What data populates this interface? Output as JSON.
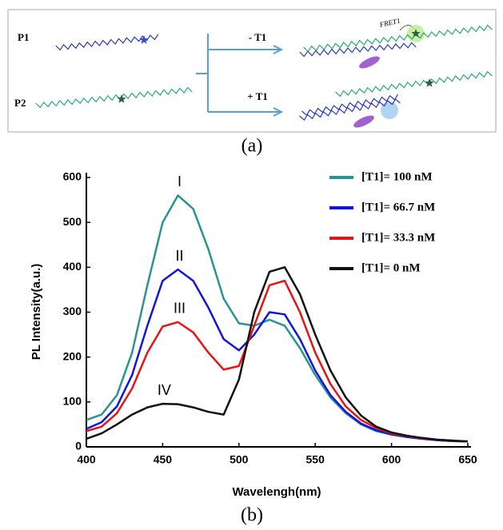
{
  "diagram": {
    "p1": "P1",
    "p2": "P2",
    "minus": "- T1",
    "plus": "+ T1",
    "fret": "FRET1"
  },
  "captions": [
    "(a)",
    "(b)"
  ],
  "chart_data": {
    "type": "line",
    "x_label": "Wavelengh(nm)",
    "y_label": "PL Intensity(a.u.)",
    "x": [
      400,
      410,
      420,
      430,
      440,
      450,
      460,
      470,
      480,
      490,
      500,
      510,
      520,
      530,
      540,
      550,
      560,
      570,
      580,
      590,
      600,
      610,
      620,
      630,
      640,
      650
    ],
    "series": [
      {
        "name": "[T1]= 100 nM",
        "label": "I",
        "color": "#2a9393",
        "values": [
          60,
          72,
          115,
          210,
          360,
          500,
          560,
          530,
          440,
          330,
          275,
          270,
          283,
          270,
          220,
          160,
          110,
          75,
          50,
          35,
          27,
          22,
          18,
          15,
          13,
          12
        ]
      },
      {
        "name": "[T1]= 66.7 nM",
        "label": "II",
        "color": "#1414e0",
        "values": [
          40,
          55,
          90,
          160,
          270,
          370,
          395,
          370,
          310,
          240,
          215,
          250,
          300,
          295,
          240,
          170,
          115,
          78,
          52,
          37,
          28,
          22,
          18,
          15,
          13,
          12
        ]
      },
      {
        "name": "[T1]= 33.3 nM",
        "label": "III",
        "color": "#e81414",
        "values": [
          35,
          45,
          75,
          130,
          210,
          268,
          278,
          255,
          210,
          172,
          180,
          270,
          360,
          370,
          300,
          210,
          140,
          90,
          60,
          42,
          30,
          24,
          19,
          16,
          14,
          12
        ]
      },
      {
        "name": "[T1]= 0 nM",
        "label": "IV",
        "color": "#111111",
        "values": [
          18,
          30,
          50,
          72,
          88,
          96,
          95,
          88,
          78,
          72,
          150,
          300,
          390,
          400,
          340,
          250,
          170,
          110,
          70,
          45,
          32,
          25,
          20,
          16,
          14,
          12
        ]
      }
    ],
    "xlim": [
      400,
      650
    ],
    "ylim": [
      0,
      600
    ],
    "xticks": [
      400,
      450,
      500,
      550,
      600,
      650
    ],
    "yticks": [
      0,
      100,
      200,
      300,
      400,
      500,
      600
    ]
  }
}
